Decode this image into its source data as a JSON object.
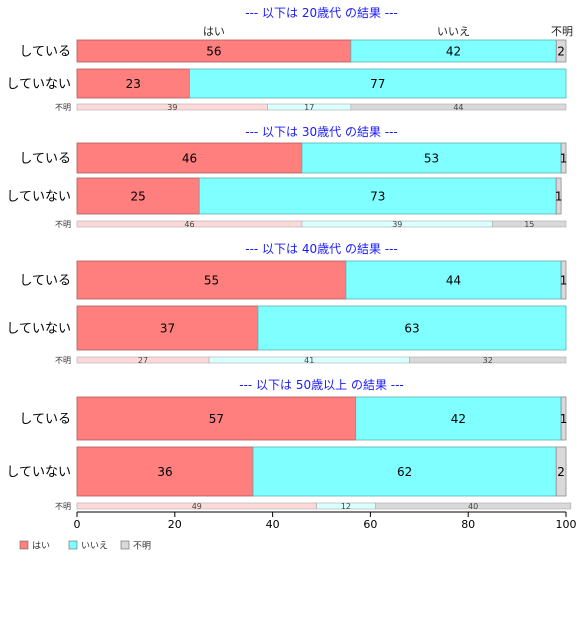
{
  "chart_data": {
    "type": "bar",
    "orientation": "horizontal",
    "stacked": true,
    "xlim": [
      0,
      100
    ],
    "x_ticks": [
      "0",
      "20",
      "40",
      "60",
      "80",
      "100"
    ],
    "series_names": [
      "はい",
      "いいえ",
      "不明"
    ],
    "series_colors": [
      "#ff7f7f",
      "#7fffff",
      "#d9d9d9"
    ],
    "unknown_row_label": "不明",
    "legend": {
      "placement": "bottom-left",
      "items": [
        {
          "label": "はい",
          "color": "#ff7f7f"
        },
        {
          "label": "いいえ",
          "color": "#7fffff"
        },
        {
          "label": "不明",
          "color": "#d9d9d9"
        }
      ]
    },
    "panels": [
      {
        "title": "--- 以下は 20歳代 の結果 ---",
        "column_labels": [
          "はい",
          "いいえ",
          "不明"
        ],
        "rows": [
          {
            "label": "している",
            "values": [
              56,
              42,
              2
            ]
          },
          {
            "label": "していない",
            "values": [
              23,
              77,
              0
            ]
          }
        ],
        "unknown": [
          39,
          17,
          44
        ]
      },
      {
        "title": "--- 以下は 30歳代 の結果 ---",
        "rows": [
          {
            "label": "している",
            "values": [
              46,
              53,
              1
            ]
          },
          {
            "label": "していない",
            "values": [
              25,
              73,
              1
            ]
          }
        ],
        "unknown": [
          46,
          39,
          15
        ]
      },
      {
        "title": "--- 以下は 40歳代 の結果 ---",
        "rows": [
          {
            "label": "している",
            "values": [
              55,
              44,
              1
            ]
          },
          {
            "label": "していない",
            "values": [
              37,
              63,
              0
            ]
          }
        ],
        "unknown": [
          27,
          41,
          32
        ]
      },
      {
        "title": "--- 以下は 50歳以上 の結果 ---",
        "rows": [
          {
            "label": "している",
            "values": [
              57,
              42,
              1
            ]
          },
          {
            "label": "していない",
            "values": [
              36,
              62,
              2
            ]
          }
        ],
        "unknown": [
          49,
          12,
          40
        ]
      }
    ]
  }
}
